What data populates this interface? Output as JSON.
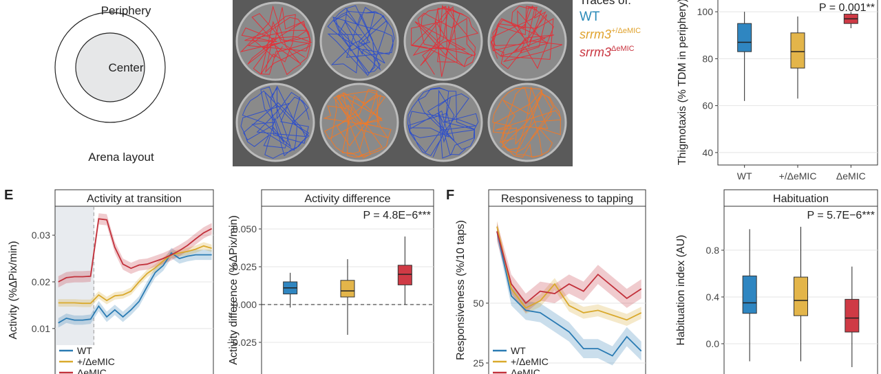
{
  "arena": {
    "periphery": "Periphery",
    "center": "Center",
    "caption": "Arena layout"
  },
  "traces_legend": {
    "title": "Traces of:",
    "wt": "WT",
    "het": {
      "gene": "srrm3",
      "allele": "+/ΔeMIC"
    },
    "hom": {
      "gene": "srrm3",
      "allele": "ΔeMIC"
    }
  },
  "panel_labels": {
    "e": "E",
    "f": "F"
  },
  "chart_data": [
    {
      "type": "box",
      "annotation": "P = 0.001**",
      "y_label": "Thigmotaxis (% TDM in periphery)",
      "categories": [
        "WT",
        "+/ΔeMIC",
        "ΔeMIC"
      ],
      "boxes": [
        {
          "color": "#2f86c1",
          "whisker_low": 62,
          "q1": 83,
          "median": 87,
          "q3": 95,
          "whisker_high": 100
        },
        {
          "color": "#e3b54a",
          "whisker_low": 63,
          "q1": 76,
          "median": 83,
          "q3": 91,
          "whisker_high": 98
        },
        {
          "color": "#cf3a45",
          "whisker_low": 93,
          "q1": 95,
          "median": 97,
          "q3": 99,
          "whisker_high": 100
        }
      ],
      "ylim": [
        34.7,
        105.6
      ],
      "yticks": [
        40,
        60,
        80,
        100
      ],
      "grid": true
    },
    {
      "type": "line",
      "title": "Activity at transition",
      "y_label": "Activity (%ΔPix/min)",
      "x": [
        1,
        2,
        3,
        4,
        5,
        6,
        7,
        8,
        9,
        10,
        11,
        12,
        13,
        14,
        15,
        16,
        17,
        18,
        19,
        20
      ],
      "xlim": [
        0.6,
        20.2
      ],
      "transition_x": 5.4,
      "series": [
        {
          "name": "WT",
          "color": "#2a7bb3",
          "values": [
            0.0112,
            0.0122,
            0.0118,
            0.0118,
            0.012,
            0.0148,
            0.0125,
            0.014,
            0.0125,
            0.014,
            0.0158,
            0.019,
            0.022,
            0.0235,
            0.0262,
            0.025,
            0.0255,
            0.0258,
            0.0258,
            0.0258
          ],
          "errors": [
            0.001,
            0.001,
            0.001,
            0.001,
            0.001,
            0.0011,
            0.0011,
            0.0011,
            0.0011,
            0.0011,
            0.0011,
            0.0011,
            0.0011,
            0.0011,
            0.0011,
            0.0011,
            0.0011,
            0.0011,
            0.0011,
            0.0011
          ]
        },
        {
          "name": "+/ΔeMIC",
          "color": "#d9a92c",
          "values": [
            0.0155,
            0.0155,
            0.0155,
            0.0154,
            0.0154,
            0.0172,
            0.016,
            0.017,
            0.0172,
            0.018,
            0.02,
            0.0218,
            0.023,
            0.0245,
            0.0258,
            0.0262,
            0.0265,
            0.027,
            0.0277,
            0.0272
          ],
          "errors": [
            0.0008,
            0.0008,
            0.0008,
            0.0008,
            0.0008,
            0.0008,
            0.0008,
            0.0008,
            0.0008,
            0.0008,
            0.0008,
            0.0008,
            0.0008,
            0.0008,
            0.0008,
            0.0008,
            0.0008,
            0.0008,
            0.0008,
            0.0008
          ]
        },
        {
          "name": "ΔeMIC",
          "color": "#c2313b",
          "values": [
            0.02,
            0.0209,
            0.0211,
            0.0211,
            0.0212,
            0.0335,
            0.0333,
            0.0274,
            0.0238,
            0.0229,
            0.0236,
            0.0238,
            0.0244,
            0.025,
            0.0258,
            0.0267,
            0.0278,
            0.0292,
            0.0305,
            0.0314
          ],
          "errors": [
            0.0012,
            0.0012,
            0.0012,
            0.0012,
            0.0012,
            0.0012,
            0.0012,
            0.0012,
            0.0012,
            0.0012,
            0.0012,
            0.0012,
            0.0012,
            0.0012,
            0.0012,
            0.0012,
            0.0012,
            0.0012,
            0.0012,
            0.0012
          ]
        }
      ],
      "ylim": [
        -0.0021,
        0.0362
      ],
      "yticks": [
        0.01,
        0.02,
        0.03
      ],
      "grid": true,
      "legend": "bottom-left"
    },
    {
      "type": "box",
      "title": "Activity difference",
      "annotation": "P = 4.8E−6***",
      "y_label": "Activity difference (%ΔPix/min)",
      "boxes": [
        {
          "color": "#2f86c1",
          "whisker_low": -0.002,
          "q1": 0.007,
          "median": 0.011,
          "q3": 0.015,
          "whisker_high": 0.021
        },
        {
          "color": "#e3b54a",
          "whisker_low": -0.02,
          "q1": 0.005,
          "median": 0.009,
          "q3": 0.016,
          "whisker_high": 0.03
        },
        {
          "color": "#cf3a45",
          "whisker_low": 0.0,
          "q1": 0.013,
          "median": 0.02,
          "q3": 0.026,
          "whisker_high": 0.045
        }
      ],
      "reference_line": 0,
      "ylim": [
        -0.0532,
        0.065
      ],
      "yticks": [
        {
          "value": -0.025,
          "label": "−0.025"
        },
        {
          "value": 0,
          "label": "0.000"
        },
        {
          "value": 0.025,
          "label": "0.025"
        },
        {
          "value": 0.05,
          "label": "0.050"
        }
      ],
      "grid": true
    },
    {
      "type": "line",
      "title": "Responsiveness to tapping",
      "y_label": "Responsiveness (%/10 taps)",
      "x": [
        1,
        2,
        3,
        4,
        5,
        6,
        7,
        8,
        9,
        10,
        11
      ],
      "xlim": [
        0.43,
        11.3
      ],
      "series": [
        {
          "name": "WT",
          "color": "#2a7bb3",
          "values": [
            80,
            53,
            47,
            46,
            42,
            38,
            31,
            31,
            28,
            36,
            30
          ],
          "errors": [
            3,
            4,
            4,
            4,
            4,
            4,
            4,
            4,
            4,
            4,
            4
          ]
        },
        {
          "name": "+/ΔeMIC",
          "color": "#d9a92c",
          "values": [
            82,
            56,
            48,
            51,
            58,
            49,
            46,
            47,
            45,
            43,
            46
          ],
          "errors": [
            2.5,
            2.5,
            2.5,
            2.5,
            2.5,
            2.5,
            2.5,
            2.5,
            2.5,
            2.5,
            2.5
          ]
        },
        {
          "name": "ΔeMIC",
          "color": "#c2313b",
          "values": [
            80,
            58,
            50,
            55,
            54,
            58,
            55,
            62,
            57,
            52,
            56
          ],
          "errors": [
            4,
            4,
            4,
            4,
            4,
            4,
            4,
            4,
            4,
            4,
            4
          ]
        }
      ],
      "ylim": [
        15.8,
        90.5
      ],
      "yticks": [
        25,
        50
      ],
      "grid": true,
      "legend": "bottom-left"
    },
    {
      "type": "box",
      "title": "Habituation",
      "annotation": "P = 5.7E−6***",
      "y_label": "Habituation index (AU)",
      "boxes": [
        {
          "color": "#2f86c1",
          "whisker_low": -0.15,
          "q1": 0.26,
          "median": 0.35,
          "q3": 0.58,
          "whisker_high": 0.98
        },
        {
          "color": "#e3b54a",
          "whisker_low": -0.15,
          "q1": 0.24,
          "median": 0.37,
          "q3": 0.57,
          "whisker_high": 1.0
        },
        {
          "color": "#cf3a45",
          "whisker_low": -0.2,
          "q1": 0.1,
          "median": 0.22,
          "q3": 0.38,
          "whisker_high": 0.66
        }
      ],
      "ylim": [
        -0.353,
        1.176
      ],
      "yticks": [
        {
          "value": 0,
          "label": "0.0"
        },
        0.4,
        0.8
      ],
      "grid": true
    }
  ]
}
